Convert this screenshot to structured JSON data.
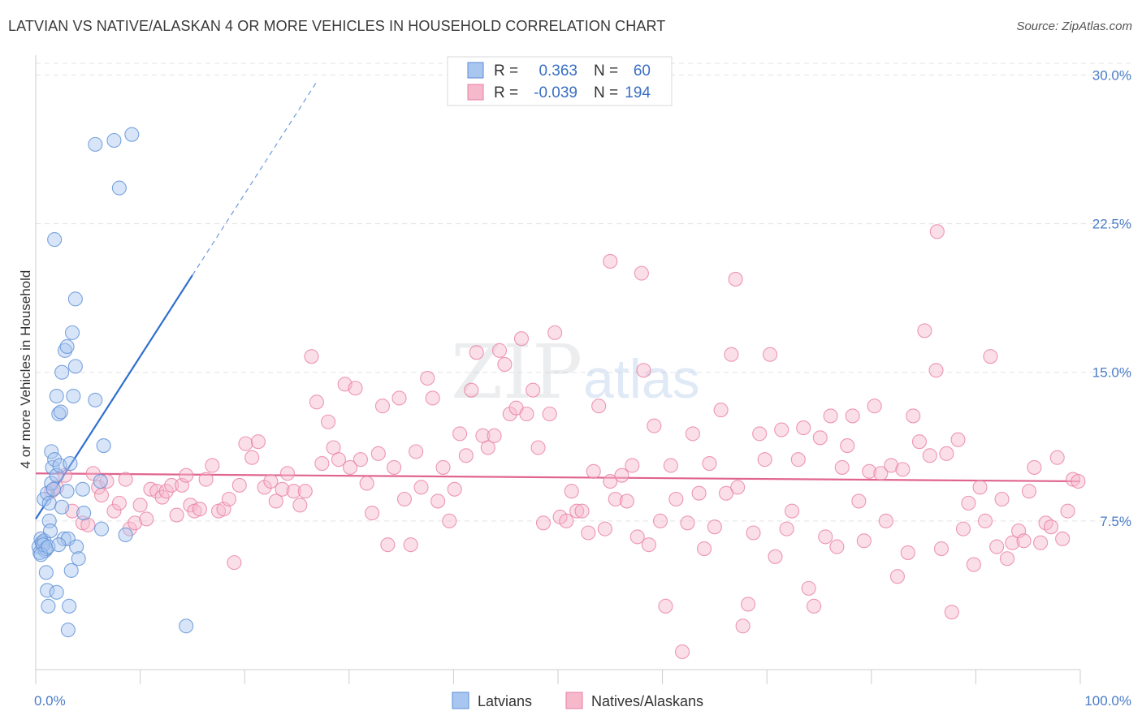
{
  "title": "LATVIAN VS NATIVE/ALASKAN 4 OR MORE VEHICLES IN HOUSEHOLD CORRELATION CHART",
  "source": "Source: ZipAtlas.com",
  "watermark": {
    "zip": "ZIP",
    "atlas": "atlas"
  },
  "colors": {
    "latvian_fill": "#a9c6f0",
    "latvian_stroke": "#5b8fd6",
    "latvian_line": "#2f6fcf",
    "native_fill": "#f6b8cb",
    "native_stroke": "#e87fa3",
    "native_line": "#e0648f",
    "tick_text": "#4a7cc7",
    "grid": "#e3e3e3"
  },
  "legend": {
    "rows": [
      {
        "r_label": "R =",
        "r_value": "0.363",
        "n_label": "N =",
        "n_value": "60"
      },
      {
        "r_label": "R =",
        "r_value": "-0.039",
        "n_label": "N =",
        "n_value": "194"
      }
    ]
  },
  "chart_data": {
    "type": "scatter",
    "xlabel": "",
    "ylabel": "4 or more Vehicles in Household",
    "xlim": [
      0,
      100
    ],
    "ylim": [
      0,
      31
    ],
    "x_tick_labels": [
      {
        "value": 0,
        "label": "0.0%"
      },
      {
        "value": 100,
        "label": "100.0%"
      }
    ],
    "y_tick_labels": [
      {
        "value": 7.5,
        "label": "7.5%"
      },
      {
        "value": 15,
        "label": "15.0%"
      },
      {
        "value": 22.5,
        "label": "22.5%"
      },
      {
        "value": 30,
        "label": "30.0%"
      }
    ],
    "grid": true,
    "legend_position": "top-center",
    "series": [
      {
        "name": "Latvians",
        "trend": {
          "x0": 0,
          "y0": 7.6,
          "x1": 15,
          "y1": 19.9,
          "dashed_to_x": 27
        },
        "points": [
          [
            0.3,
            6.2
          ],
          [
            0.5,
            6.6
          ],
          [
            0.4,
            5.9
          ],
          [
            0.6,
            6.4
          ],
          [
            0.8,
            6.5
          ],
          [
            0.9,
            6.0
          ],
          [
            1.0,
            6.1
          ],
          [
            0.7,
            6.3
          ],
          [
            0.5,
            5.8
          ],
          [
            1.2,
            6.2
          ],
          [
            0.8,
            8.6
          ],
          [
            1.1,
            8.9
          ],
          [
            1.3,
            7.5
          ],
          [
            1.5,
            9.4
          ],
          [
            1.7,
            9.1
          ],
          [
            1.3,
            8.4
          ],
          [
            1.4,
            7.0
          ],
          [
            1.0,
            4.9
          ],
          [
            1.2,
            3.2
          ],
          [
            1.1,
            4.0
          ],
          [
            1.6,
            10.2
          ],
          [
            1.5,
            11.0
          ],
          [
            1.8,
            10.6
          ],
          [
            2.0,
            9.8
          ],
          [
            2.2,
            12.9
          ],
          [
            2.0,
            13.8
          ],
          [
            2.4,
            13.0
          ],
          [
            2.5,
            15.0
          ],
          [
            2.8,
            16.1
          ],
          [
            3.0,
            16.3
          ],
          [
            3.5,
            17.0
          ],
          [
            3.8,
            15.3
          ],
          [
            3.6,
            13.8
          ],
          [
            2.3,
            10.3
          ],
          [
            2.7,
            6.6
          ],
          [
            3.1,
            6.6
          ],
          [
            3.4,
            5.0
          ],
          [
            3.2,
            3.2
          ],
          [
            2.0,
            3.9
          ],
          [
            3.1,
            2.0
          ],
          [
            2.2,
            6.3
          ],
          [
            2.5,
            8.2
          ],
          [
            3.0,
            9.0
          ],
          [
            3.3,
            10.4
          ],
          [
            3.9,
            6.2
          ],
          [
            4.1,
            5.6
          ],
          [
            4.5,
            9.1
          ],
          [
            4.6,
            7.9
          ],
          [
            5.7,
            13.6
          ],
          [
            6.5,
            11.3
          ],
          [
            6.2,
            9.5
          ],
          [
            6.3,
            7.1
          ],
          [
            8.6,
            6.8
          ],
          [
            5.7,
            26.5
          ],
          [
            7.5,
            26.7
          ],
          [
            9.2,
            27.0
          ],
          [
            8.0,
            24.3
          ],
          [
            1.8,
            21.7
          ],
          [
            3.8,
            18.7
          ],
          [
            14.4,
            2.2
          ]
        ]
      },
      {
        "name": "Natives/Alaskans",
        "trend": {
          "x0": 0,
          "y0": 9.9,
          "x1": 100,
          "y1": 9.5
        },
        "points": [
          [
            1.5,
            9.0
          ],
          [
            2.0,
            9.2
          ],
          [
            2.8,
            9.8
          ],
          [
            3.5,
            8.0
          ],
          [
            4.5,
            7.4
          ],
          [
            5.0,
            7.3
          ],
          [
            5.5,
            9.9
          ],
          [
            6.0,
            9.2
          ],
          [
            6.3,
            8.8
          ],
          [
            6.8,
            9.5
          ],
          [
            7.5,
            8.0
          ],
          [
            8.0,
            8.4
          ],
          [
            8.6,
            9.6
          ],
          [
            9.0,
            7.1
          ],
          [
            9.5,
            7.4
          ],
          [
            10.0,
            8.3
          ],
          [
            10.6,
            7.6
          ],
          [
            11.0,
            9.1
          ],
          [
            11.6,
            9.0
          ],
          [
            12.1,
            8.7
          ],
          [
            12.5,
            9.0
          ],
          [
            13.0,
            9.3
          ],
          [
            13.5,
            7.8
          ],
          [
            14.0,
            9.3
          ],
          [
            14.4,
            9.8
          ],
          [
            14.8,
            8.3
          ],
          [
            15.2,
            8.0
          ],
          [
            15.7,
            8.1
          ],
          [
            16.3,
            9.6
          ],
          [
            16.9,
            10.3
          ],
          [
            17.5,
            8.0
          ],
          [
            18.0,
            8.1
          ],
          [
            18.5,
            8.6
          ],
          [
            19.0,
            5.4
          ],
          [
            19.5,
            9.3
          ],
          [
            20.1,
            11.4
          ],
          [
            20.7,
            10.7
          ],
          [
            21.3,
            11.5
          ],
          [
            21.9,
            9.2
          ],
          [
            22.5,
            9.5
          ],
          [
            23.0,
            8.5
          ],
          [
            23.6,
            9.1
          ],
          [
            24.1,
            9.9
          ],
          [
            24.7,
            9.0
          ],
          [
            25.3,
            8.3
          ],
          [
            25.8,
            9.0
          ],
          [
            26.4,
            15.8
          ],
          [
            26.9,
            13.5
          ],
          [
            27.4,
            10.4
          ],
          [
            28.0,
            12.5
          ],
          [
            28.5,
            11.2
          ],
          [
            29.0,
            10.6
          ],
          [
            29.6,
            14.4
          ],
          [
            30.1,
            10.2
          ],
          [
            30.6,
            14.2
          ],
          [
            31.1,
            10.6
          ],
          [
            31.7,
            9.4
          ],
          [
            32.2,
            7.9
          ],
          [
            32.8,
            10.9
          ],
          [
            33.2,
            13.3
          ],
          [
            33.7,
            6.3
          ],
          [
            34.3,
            10.2
          ],
          [
            34.8,
            13.7
          ],
          [
            35.3,
            8.6
          ],
          [
            35.9,
            6.3
          ],
          [
            36.4,
            11.0
          ],
          [
            36.9,
            9.2
          ],
          [
            37.5,
            14.7
          ],
          [
            38.0,
            13.7
          ],
          [
            38.5,
            8.5
          ],
          [
            39.0,
            10.2
          ],
          [
            39.6,
            7.5
          ],
          [
            40.1,
            9.1
          ],
          [
            40.6,
            11.9
          ],
          [
            41.2,
            10.8
          ],
          [
            41.7,
            14.1
          ],
          [
            42.2,
            16.0
          ],
          [
            42.8,
            11.8
          ],
          [
            43.3,
            11.2
          ],
          [
            43.9,
            11.8
          ],
          [
            44.4,
            16.1
          ],
          [
            44.9,
            15.4
          ],
          [
            45.4,
            12.9
          ],
          [
            46.0,
            13.2
          ],
          [
            46.5,
            16.7
          ],
          [
            47.0,
            12.9
          ],
          [
            47.6,
            14.1
          ],
          [
            48.1,
            11.2
          ],
          [
            48.6,
            7.4
          ],
          [
            49.2,
            12.9
          ],
          [
            49.7,
            17.0
          ],
          [
            50.2,
            7.7
          ],
          [
            50.8,
            7.5
          ],
          [
            51.3,
            9.0
          ],
          [
            51.8,
            8.0
          ],
          [
            52.3,
            8.0
          ],
          [
            52.9,
            6.9
          ],
          [
            53.4,
            10.0
          ],
          [
            53.9,
            13.3
          ],
          [
            54.5,
            7.1
          ],
          [
            55.0,
            9.5
          ],
          [
            55.5,
            8.6
          ],
          [
            56.1,
            9.8
          ],
          [
            56.6,
            8.5
          ],
          [
            57.1,
            10.3
          ],
          [
            57.6,
            6.7
          ],
          [
            58.2,
            15.1
          ],
          [
            58.7,
            6.3
          ],
          [
            59.2,
            12.3
          ],
          [
            59.8,
            7.5
          ],
          [
            60.3,
            3.2
          ],
          [
            60.8,
            10.3
          ],
          [
            61.3,
            8.6
          ],
          [
            61.9,
            0.9
          ],
          [
            62.4,
            7.4
          ],
          [
            62.9,
            11.9
          ],
          [
            63.5,
            8.9
          ],
          [
            64.0,
            6.1
          ],
          [
            64.5,
            10.4
          ],
          [
            65.0,
            7.2
          ],
          [
            65.6,
            13.1
          ],
          [
            66.1,
            8.9
          ],
          [
            66.6,
            15.9
          ],
          [
            67.2,
            9.2
          ],
          [
            67.7,
            2.2
          ],
          [
            68.2,
            3.3
          ],
          [
            68.7,
            6.9
          ],
          [
            69.3,
            11.9
          ],
          [
            69.8,
            10.6
          ],
          [
            70.3,
            15.9
          ],
          [
            70.8,
            5.7
          ],
          [
            71.4,
            12.1
          ],
          [
            71.9,
            7.1
          ],
          [
            72.4,
            8.0
          ],
          [
            73.0,
            10.6
          ],
          [
            73.5,
            12.2
          ],
          [
            74.0,
            4.1
          ],
          [
            74.5,
            3.2
          ],
          [
            75.1,
            11.7
          ],
          [
            75.6,
            6.7
          ],
          [
            76.1,
            12.8
          ],
          [
            76.7,
            6.2
          ],
          [
            77.2,
            10.2
          ],
          [
            77.7,
            11.3
          ],
          [
            78.2,
            12.8
          ],
          [
            78.8,
            8.5
          ],
          [
            79.3,
            6.5
          ],
          [
            79.8,
            10.0
          ],
          [
            80.3,
            13.3
          ],
          [
            80.9,
            9.9
          ],
          [
            81.4,
            7.5
          ],
          [
            81.9,
            10.3
          ],
          [
            82.5,
            4.7
          ],
          [
            83.0,
            10.1
          ],
          [
            83.5,
            5.9
          ],
          [
            84.0,
            12.8
          ],
          [
            84.6,
            11.5
          ],
          [
            85.1,
            17.1
          ],
          [
            85.6,
            10.8
          ],
          [
            86.2,
            15.1
          ],
          [
            86.7,
            6.1
          ],
          [
            87.2,
            10.9
          ],
          [
            87.7,
            2.9
          ],
          [
            88.3,
            11.6
          ],
          [
            88.8,
            7.1
          ],
          [
            89.3,
            8.4
          ],
          [
            89.8,
            5.3
          ],
          [
            90.4,
            9.2
          ],
          [
            90.9,
            7.5
          ],
          [
            91.4,
            15.8
          ],
          [
            92.0,
            6.2
          ],
          [
            92.5,
            8.6
          ],
          [
            93.0,
            5.6
          ],
          [
            93.5,
            6.4
          ],
          [
            94.1,
            7.0
          ],
          [
            94.6,
            6.5
          ],
          [
            95.1,
            9.0
          ],
          [
            95.6,
            10.2
          ],
          [
            96.2,
            6.4
          ],
          [
            96.7,
            7.4
          ],
          [
            97.2,
            7.2
          ],
          [
            97.8,
            10.7
          ],
          [
            98.3,
            6.6
          ],
          [
            98.8,
            8.0
          ],
          [
            99.3,
            9.6
          ],
          [
            99.8,
            9.5
          ],
          [
            86.3,
            22.1
          ],
          [
            55.0,
            20.6
          ],
          [
            58.0,
            20.0
          ],
          [
            67.0,
            19.7
          ]
        ]
      }
    ]
  },
  "bottom_legend": [
    {
      "label": "Latvians"
    },
    {
      "label": "Natives/Alaskans"
    }
  ]
}
